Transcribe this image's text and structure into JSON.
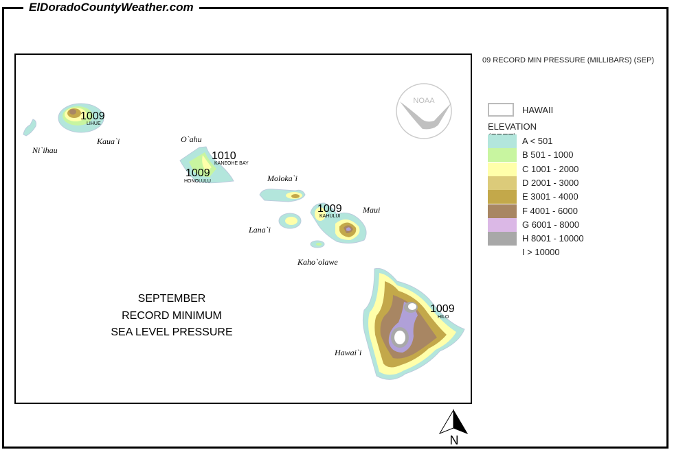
{
  "site_title": "ElDoradoCountyWeather.com",
  "map": {
    "title_lines": [
      "SEPTEMBER",
      "RECORD MINIMUM",
      "SEA LEVEL PRESSURE"
    ],
    "islands": [
      "Ni`ihau",
      "Kaua`i",
      "O`ahu",
      "Moloka`i",
      "Lana`i",
      "Maui",
      "Kaho`olawe",
      "Hawai`i"
    ],
    "stations": [
      {
        "name": "LIHUE",
        "value": "1009"
      },
      {
        "name": "KANEOHE BAY",
        "value": "1010"
      },
      {
        "name": "HONOLULU",
        "value": "1009"
      },
      {
        "name": "KAHULUI",
        "value": "1009"
      },
      {
        "name": "HILO",
        "value": "1009"
      }
    ],
    "logo": "NOAA",
    "north_label": "N"
  },
  "legend": {
    "heading": "09 RECORD MIN PRESSURE (MILLIBARS) (SEP)",
    "state_label": "HAWAII",
    "elevation_title": "ELEVATION (FEET)",
    "classes": [
      {
        "label": "A < 501",
        "color": "#b3e6dc"
      },
      {
        "label": "B 501 - 1000",
        "color": "#c8f5a0"
      },
      {
        "label": "C 1001 - 2000",
        "color": "#ffffaa"
      },
      {
        "label": "D 2001 - 3000",
        "color": "#dccb7a"
      },
      {
        "label": "E 3001 - 4000",
        "color": "#c3a84a"
      },
      {
        "label": "F 4001 - 6000",
        "color": "#a88663"
      },
      {
        "label": "G 6001 - 8000",
        "color": "#dbb8e6"
      },
      {
        "label": "H 8001 - 10000",
        "color": "#a8a8a8"
      },
      {
        "label": "I > 10000",
        "color": "#ffffff"
      }
    ]
  }
}
